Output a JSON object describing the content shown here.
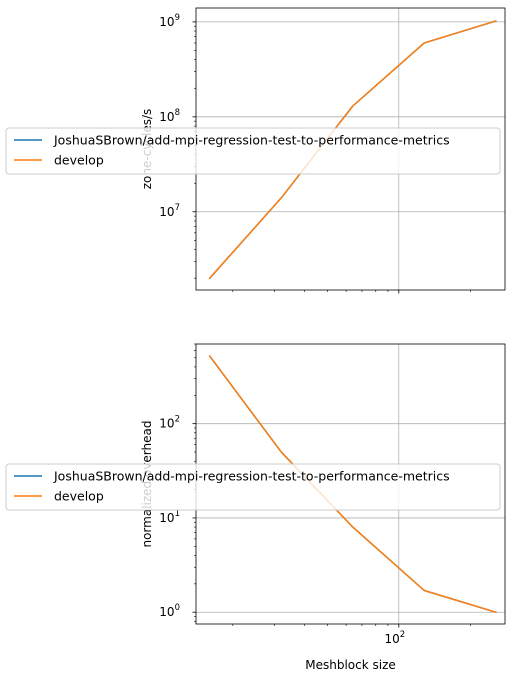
{
  "chart_data": [
    {
      "type": "line",
      "xlabel": "",
      "ylabel": "zone-cycles/s",
      "xscale": "log",
      "yscale": "log",
      "xlim": [
        14,
        280
      ],
      "ylim": [
        1500000,
        1400000000
      ],
      "grid": true,
      "legend_location": "center-left",
      "x_ticks": [
        {
          "value": 100,
          "label": "10",
          "exp": "2"
        }
      ],
      "x_tick_labels_visible": false,
      "y_ticks": [
        {
          "value": 10000000,
          "label": "10",
          "exp": "7"
        },
        {
          "value": 100000000,
          "label": "10",
          "exp": "8"
        },
        {
          "value": 1000000000,
          "label": "10",
          "exp": "9"
        }
      ],
      "series": [
        {
          "name": "JoshuaSBrown/add-mpi-regression-test-to-performance-metrics",
          "color": "#1f77b4",
          "x": [
            16,
            32,
            64,
            128,
            256
          ],
          "y": [
            2000000,
            14000000,
            130000000,
            600000000,
            1020000000
          ]
        },
        {
          "name": "develop",
          "color": "#ff7f0e",
          "x": [
            16,
            32,
            64,
            128,
            256
          ],
          "y": [
            2000000,
            14000000,
            130000000,
            600000000,
            1020000000
          ]
        }
      ]
    },
    {
      "type": "line",
      "xlabel": "Meshblock size",
      "ylabel": "normalized overhead",
      "xscale": "log",
      "yscale": "log",
      "xlim": [
        14,
        280
      ],
      "ylim": [
        0.75,
        700
      ],
      "grid": true,
      "legend_location": "center-left",
      "x_ticks": [
        {
          "value": 100,
          "label": "10",
          "exp": "2"
        }
      ],
      "x_tick_labels_visible": true,
      "y_ticks": [
        {
          "value": 1,
          "label": "10",
          "exp": "0"
        },
        {
          "value": 10,
          "label": "10",
          "exp": "1"
        },
        {
          "value": 100,
          "label": "10",
          "exp": "2"
        }
      ],
      "series": [
        {
          "name": "JoshuaSBrown/add-mpi-regression-test-to-performance-metrics",
          "color": "#1f77b4",
          "x": [
            16,
            32,
            64,
            128,
            256
          ],
          "y": [
            520,
            50,
            8,
            1.7,
            1
          ]
        },
        {
          "name": "develop",
          "color": "#ff7f0e",
          "x": [
            16,
            32,
            64,
            128,
            256
          ],
          "y": [
            520,
            50,
            8,
            1.7,
            1
          ]
        }
      ]
    }
  ]
}
